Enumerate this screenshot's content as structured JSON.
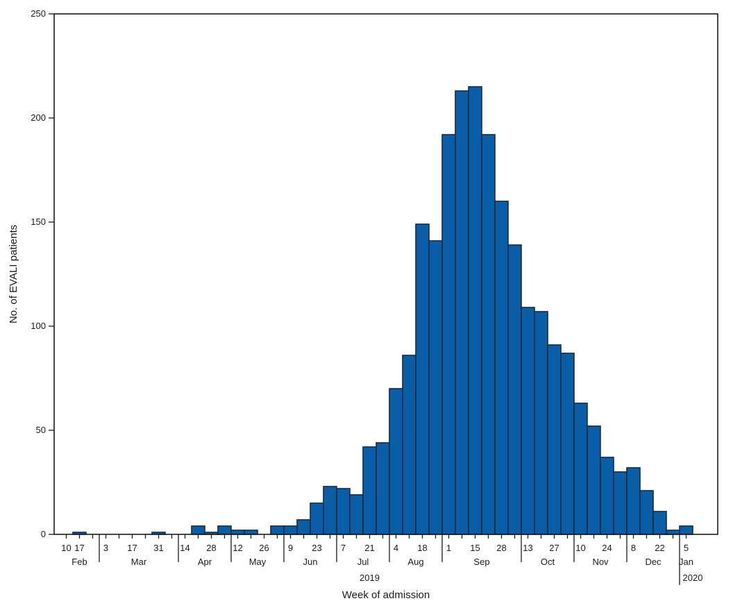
{
  "chart_data": {
    "type": "bar",
    "title": "",
    "xlabel": "Week of admission",
    "ylabel": "No. of EVALI patients",
    "ylim": [
      0,
      250
    ],
    "yticks": [
      0,
      50,
      100,
      150,
      200,
      250
    ],
    "grid": false,
    "bar_color": "#0a5ea8",
    "bar_edge_color": "#1c2b3a",
    "weeks": [
      "Feb 10",
      "Feb 17",
      "Feb 24",
      "Mar 3",
      "Mar 10",
      "Mar 17",
      "Mar 24",
      "Mar 31",
      "Apr 7",
      "Apr 14",
      "Apr 21",
      "Apr 28",
      "May 5",
      "May 12",
      "May 19",
      "May 26",
      "Jun 2",
      "Jun 9",
      "Jun 16",
      "Jun 23",
      "Jun 30",
      "Jul 7",
      "Jul 14",
      "Jul 21",
      "Jul 28",
      "Aug 4",
      "Aug 11",
      "Aug 18",
      "Aug 25",
      "Sep 1",
      "Sep 8",
      "Sep 15",
      "Sep 22",
      "Sep 28",
      "Oct 6",
      "Oct 13",
      "Oct 20",
      "Oct 27",
      "Nov 3",
      "Nov 10",
      "Nov 17",
      "Nov 24",
      "Dec 1",
      "Dec 8",
      "Dec 15",
      "Dec 22",
      "Dec 29",
      "Jan 5"
    ],
    "values": [
      0,
      1,
      0,
      0,
      0,
      0,
      0,
      1,
      0,
      0,
      4,
      1,
      4,
      2,
      2,
      0,
      4,
      4,
      7,
      15,
      23,
      22,
      19,
      42,
      44,
      70,
      86,
      149,
      141,
      192,
      213,
      215,
      192,
      160,
      139,
      109,
      107,
      91,
      87,
      63,
      52,
      37,
      30,
      32,
      21,
      11,
      2,
      4
    ],
    "x_tick_labels": [
      {
        "week_index": 0,
        "label": "10"
      },
      {
        "week_index": 1,
        "label": "17"
      },
      {
        "week_index": 3,
        "label": "3"
      },
      {
        "week_index": 5,
        "label": "17"
      },
      {
        "week_index": 7,
        "label": "31"
      },
      {
        "week_index": 9,
        "label": "14"
      },
      {
        "week_index": 11,
        "label": "28"
      },
      {
        "week_index": 13,
        "label": "12"
      },
      {
        "week_index": 15,
        "label": "26"
      },
      {
        "week_index": 17,
        "label": "9"
      },
      {
        "week_index": 19,
        "label": "23"
      },
      {
        "week_index": 21,
        "label": "7"
      },
      {
        "week_index": 23,
        "label": "21"
      },
      {
        "week_index": 25,
        "label": "4"
      },
      {
        "week_index": 27,
        "label": "18"
      },
      {
        "week_index": 29,
        "label": "1"
      },
      {
        "week_index": 31,
        "label": "15"
      },
      {
        "week_index": 33,
        "label": "28"
      },
      {
        "week_index": 35,
        "label": "13"
      },
      {
        "week_index": 37,
        "label": "27"
      },
      {
        "week_index": 39,
        "label": "10"
      },
      {
        "week_index": 41,
        "label": "24"
      },
      {
        "week_index": 43,
        "label": "8"
      },
      {
        "week_index": 45,
        "label": "22"
      },
      {
        "week_index": 47,
        "label": "5"
      }
    ],
    "months": [
      {
        "label": "Feb",
        "start_week": 0,
        "end_week": 3
      },
      {
        "label": "Mar",
        "start_week": 3,
        "end_week": 9
      },
      {
        "label": "Apr",
        "start_week": 9,
        "end_week": 13
      },
      {
        "label": "May",
        "start_week": 13,
        "end_week": 17
      },
      {
        "label": "Jun",
        "start_week": 17,
        "end_week": 21
      },
      {
        "label": "Jul",
        "start_week": 21,
        "end_week": 25
      },
      {
        "label": "Aug",
        "start_week": 25,
        "end_week": 29
      },
      {
        "label": "Sep",
        "start_week": 29,
        "end_week": 35
      },
      {
        "label": "Oct",
        "start_week": 35,
        "end_week": 39
      },
      {
        "label": "Nov",
        "start_week": 39,
        "end_week": 43
      },
      {
        "label": "Dec",
        "start_week": 43,
        "end_week": 47
      },
      {
        "label": "Jan",
        "start_week": 47,
        "end_week": 48
      }
    ],
    "years": [
      {
        "label": "2019",
        "start_week": 0,
        "end_week": 47
      },
      {
        "label": "2020",
        "start_week": 47,
        "end_week": 48
      }
    ]
  }
}
